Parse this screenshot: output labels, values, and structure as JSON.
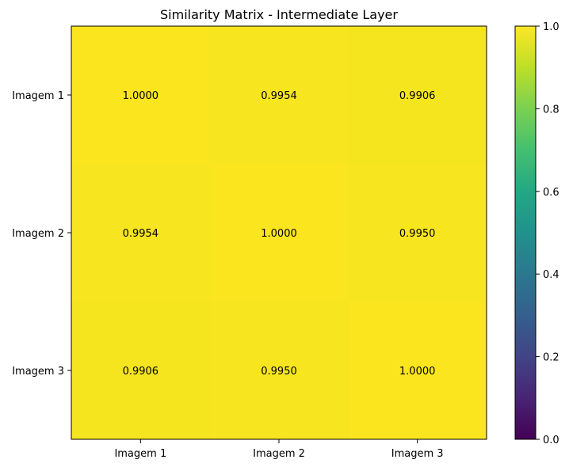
{
  "chart_data": {
    "type": "heatmap",
    "title": "Similarity Matrix - Intermediate Layer",
    "xlabel": "",
    "ylabel": "",
    "x_categories": [
      "Imagem 1",
      "Imagem 2",
      "Imagem 3"
    ],
    "y_categories": [
      "Imagem 1",
      "Imagem 2",
      "Imagem 3"
    ],
    "values": [
      [
        1.0,
        0.9954,
        0.9906
      ],
      [
        0.9954,
        1.0,
        0.995
      ],
      [
        0.9906,
        0.995,
        1.0
      ]
    ],
    "cell_labels": [
      [
        "1.0000",
        "0.9954",
        "0.9906"
      ],
      [
        "0.9954",
        "1.0000",
        "0.9950"
      ],
      [
        "0.9906",
        "0.9950",
        "1.0000"
      ]
    ],
    "colormap": "viridis",
    "vmin": 0.0,
    "vmax": 1.0,
    "colorbar": {
      "ticks": [
        0.0,
        0.2,
        0.4,
        0.6,
        0.8,
        1.0
      ],
      "tick_labels": [
        "0.0",
        "0.2",
        "0.4",
        "0.6",
        "0.8",
        "1.0"
      ]
    },
    "grid": false,
    "legend": "none"
  }
}
